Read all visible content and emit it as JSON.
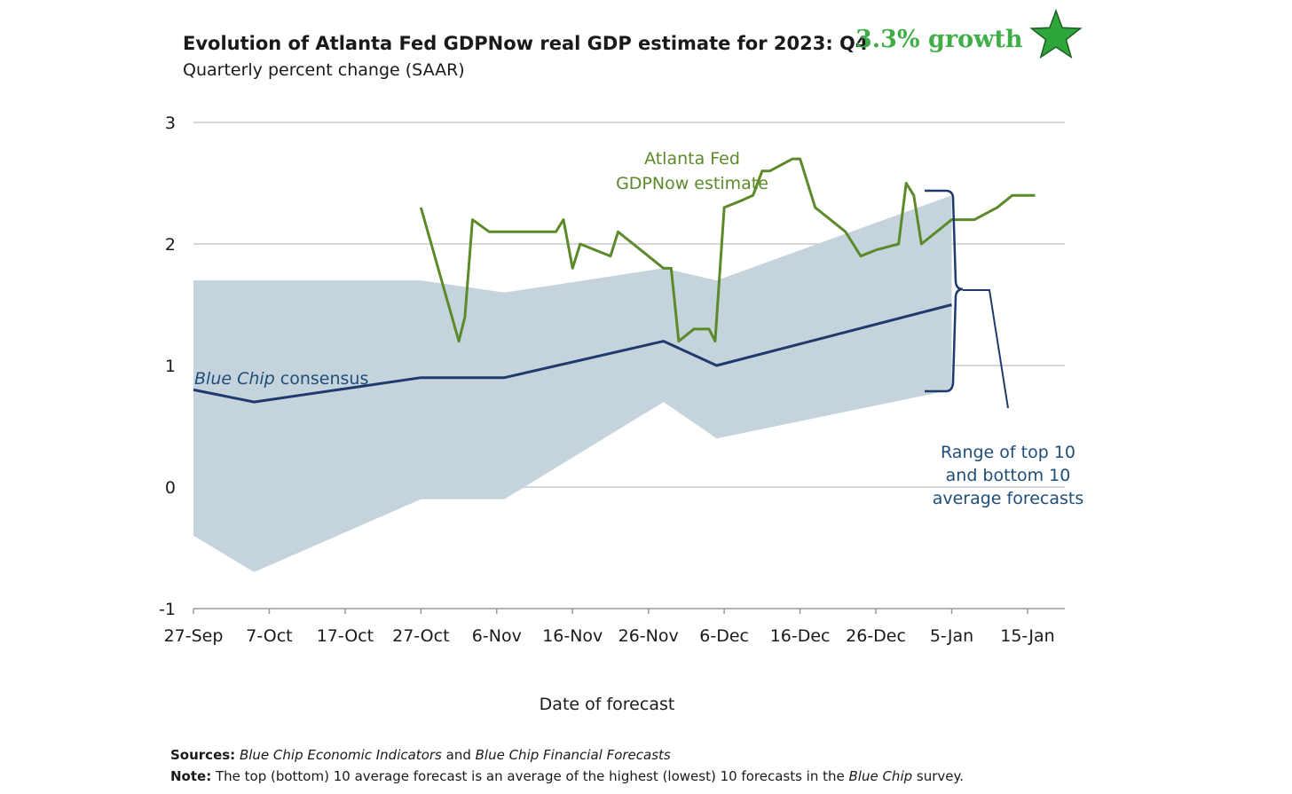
{
  "header": {
    "title": "Evolution of Atlanta Fed GDPNow real GDP estimate for 2023: Q4",
    "subtitle": "Quarterly percent change (SAAR)",
    "badge": "3.3% growth",
    "badge_icon": "star-icon",
    "badge_color": "#3fae49"
  },
  "annotations": {
    "gdpnow_line1": "Atlanta Fed",
    "gdpnow_line2": "GDPNow estimate",
    "bluechip_label_italic": "Blue Chip",
    "bluechip_label_rest": " consensus",
    "range_line1": "Range of top 10",
    "range_line2": "and bottom 10",
    "range_line3": "average forecasts"
  },
  "footer": {
    "sources_label": "Sources:",
    "sources_part1": "Blue Chip Economic Indicators",
    "sources_part2": " and ",
    "sources_part3": "Blue Chip Financial Forecasts",
    "note_label": "Note:",
    "note_part1": " The top (bottom) 10 average forecast is an average of the highest (lowest) 10 forecasts in the ",
    "note_part2": "Blue Chip",
    "note_part3": " survey."
  },
  "chart_data": {
    "type": "line",
    "xlabel": "Date of forecast",
    "ylabel": "",
    "ylim": [
      -1,
      3
    ],
    "yticks": [
      3,
      2,
      1,
      0,
      -1
    ],
    "xlim_days": [
      0,
      115
    ],
    "xticks": [
      {
        "label": "27-Sep",
        "day": 0
      },
      {
        "label": "7-Oct",
        "day": 10
      },
      {
        "label": "17-Oct",
        "day": 20
      },
      {
        "label": "27-Oct",
        "day": 30
      },
      {
        "label": "6-Nov",
        "day": 40
      },
      {
        "label": "16-Nov",
        "day": 50
      },
      {
        "label": "26-Nov",
        "day": 60
      },
      {
        "label": "6-Dec",
        "day": 70
      },
      {
        "label": "16-Dec",
        "day": 80
      },
      {
        "label": "26-Dec",
        "day": 90
      },
      {
        "label": "5-Jan",
        "day": 100
      },
      {
        "label": "15-Jan",
        "day": 110
      }
    ],
    "grid": true,
    "colors": {
      "gdpnow": "#5c8a2a",
      "bluechip": "#1f3b6e",
      "range": "#c5d3dd",
      "grid": "#bfbfbf"
    },
    "series": [
      {
        "name": "Atlanta Fed GDPNow estimate",
        "points": [
          [
            30,
            2.3
          ],
          [
            35,
            1.2
          ],
          [
            35.8,
            1.4
          ],
          [
            36.8,
            2.2
          ],
          [
            39,
            2.1
          ],
          [
            43,
            2.1
          ],
          [
            47.8,
            2.1
          ],
          [
            48.8,
            2.2
          ],
          [
            50,
            1.8
          ],
          [
            51,
            2.0
          ],
          [
            53,
            1.95
          ],
          [
            55,
            1.9
          ],
          [
            56,
            2.1
          ],
          [
            58,
            2.0
          ],
          [
            60,
            1.9
          ],
          [
            62,
            1.8
          ],
          [
            63,
            1.8
          ],
          [
            64,
            1.2
          ],
          [
            66,
            1.3
          ],
          [
            68,
            1.3
          ],
          [
            68.8,
            1.2
          ],
          [
            70,
            2.3
          ],
          [
            72,
            2.35
          ],
          [
            73.8,
            2.4
          ],
          [
            75,
            2.6
          ],
          [
            76,
            2.6
          ],
          [
            79,
            2.7
          ],
          [
            80,
            2.7
          ],
          [
            82,
            2.3
          ],
          [
            84,
            2.2
          ],
          [
            86,
            2.1
          ],
          [
            88,
            1.9
          ],
          [
            90,
            1.95
          ],
          [
            93,
            2.0
          ],
          [
            94,
            2.5
          ],
          [
            95,
            2.4
          ],
          [
            96,
            2.0
          ],
          [
            98,
            2.1
          ],
          [
            100,
            2.2
          ],
          [
            103,
            2.2
          ],
          [
            106,
            2.3
          ],
          [
            108,
            2.4
          ],
          [
            111,
            2.4
          ]
        ]
      },
      {
        "name": "Blue Chip consensus",
        "points": [
          [
            0,
            0.8
          ],
          [
            8,
            0.7
          ],
          [
            30,
            0.9
          ],
          [
            41,
            0.9
          ],
          [
            62,
            1.2
          ],
          [
            69,
            1.0
          ],
          [
            100,
            1.5
          ]
        ]
      }
    ],
    "range_band": {
      "name": "Range of top 10 and bottom 10 average forecasts",
      "upper": [
        [
          0,
          1.7
        ],
        [
          30,
          1.7
        ],
        [
          41,
          1.6
        ],
        [
          62,
          1.8
        ],
        [
          69,
          1.7
        ],
        [
          100,
          2.4
        ]
      ],
      "lower": [
        [
          0,
          -0.4
        ],
        [
          8,
          -0.7
        ],
        [
          30,
          -0.1
        ],
        [
          41,
          -0.1
        ],
        [
          62,
          0.7
        ],
        [
          69,
          0.4
        ],
        [
          100,
          0.8
        ]
      ]
    }
  }
}
